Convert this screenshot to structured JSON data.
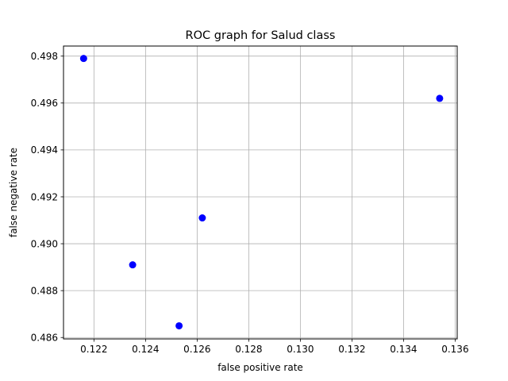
{
  "chart_data": {
    "type": "scatter",
    "title": "ROC graph for Salud class",
    "xlabel": "false positive rate",
    "ylabel": "false negative rate",
    "xlim": [
      0.12082,
      0.13608
    ],
    "ylim": [
      0.48594,
      0.49843
    ],
    "x_ticks": [
      0.122,
      0.124,
      0.126,
      0.128,
      0.13,
      0.132,
      0.134,
      0.136
    ],
    "x_tick_labels": [
      "0.122",
      "0.124",
      "0.126",
      "0.128",
      "0.130",
      "0.132",
      "0.134",
      "0.136"
    ],
    "y_ticks": [
      0.486,
      0.488,
      0.49,
      0.492,
      0.494,
      0.496,
      0.498
    ],
    "y_tick_labels": [
      "0.486",
      "0.488",
      "0.490",
      "0.492",
      "0.494",
      "0.496",
      "0.498"
    ],
    "grid": true,
    "marker_color": "#0000ff",
    "points": [
      {
        "x": 0.1216,
        "y": 0.4979
      },
      {
        "x": 0.1235,
        "y": 0.4891
      },
      {
        "x": 0.1253,
        "y": 0.4865
      },
      {
        "x": 0.1262,
        "y": 0.4911
      },
      {
        "x": 0.1354,
        "y": 0.4962
      }
    ]
  }
}
